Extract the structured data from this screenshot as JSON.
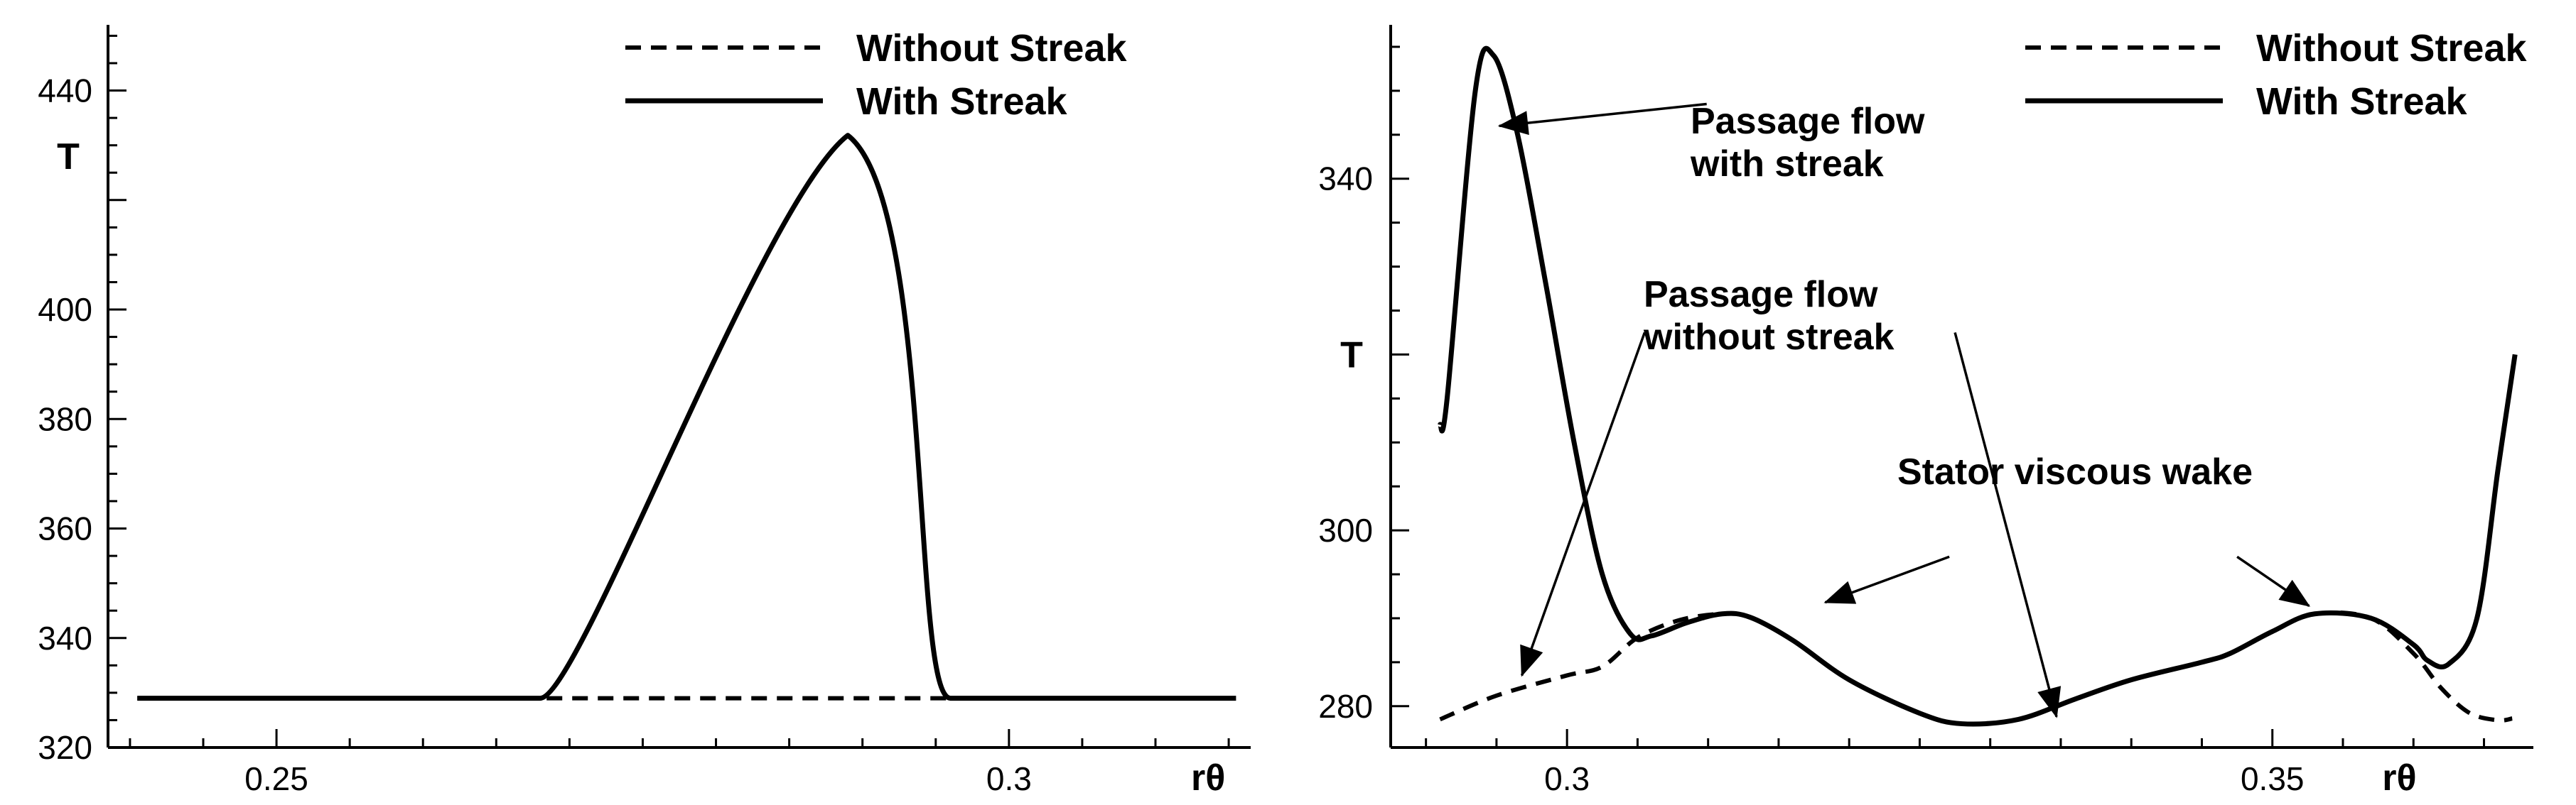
{
  "chart_data": [
    {
      "type": "line",
      "xlim": [
        0.2385,
        0.3165
      ],
      "ylim": [
        320,
        452
      ],
      "x_ticks": [
        {
          "value": 0.25,
          "label": "0.25"
        },
        {
          "value": 0.3,
          "label": "0.3"
        },
        {
          "value": 0.3136,
          "label": "rθ"
        }
      ],
      "y_ticks": [
        {
          "value": 320,
          "label": "320"
        },
        {
          "value": 340,
          "label": "340"
        },
        {
          "value": 360,
          "label": "360"
        },
        {
          "value": 380,
          "label": "380"
        },
        {
          "value": 400,
          "label": "400"
        },
        {
          "value": 440,
          "label": "440"
        }
      ],
      "ylabel": {
        "value": 428,
        "label": "T"
      },
      "grid": false,
      "legend_position": "top-right",
      "series": [
        {
          "name": "Without Streak",
          "style": "dashed",
          "x": [
            0.2405,
            0.3155
          ],
          "y": [
            329,
            329
          ]
        },
        {
          "name": "With Streak",
          "style": "solid",
          "x": [
            0.2405,
            0.268,
            0.2865,
            0.2915,
            0.296,
            0.3055,
            0.3155
          ],
          "y": [
            329,
            329,
            430,
            430,
            329,
            329,
            329
          ]
        }
      ]
    },
    {
      "type": "line",
      "xlim": [
        0.2875,
        0.3685
      ],
      "ylim": [
        275.3,
        357.5
      ],
      "x_ticks": [
        {
          "value": 0.3,
          "label": "0.3"
        },
        {
          "value": 0.35,
          "label": "0.35"
        },
        {
          "value": 0.359,
          "label": "rθ"
        }
      ],
      "y_ticks": [
        {
          "value": 280,
          "label": "280"
        },
        {
          "value": 300,
          "label": "300"
        },
        {
          "value": 340,
          "label": "340"
        }
      ],
      "ylabel": {
        "value": 320,
        "label": "T"
      },
      "grid": false,
      "legend_position": "top-right",
      "series": [
        {
          "name": "Without Streak",
          "style": "dashed",
          "x": [
            0.291,
            0.295,
            0.3,
            0.3025,
            0.305,
            0.308,
            0.311,
            0.313,
            0.316,
            0.32,
            0.325,
            0.328,
            0.332,
            0.336,
            0.34,
            0.345,
            0.347,
            0.35,
            0.353,
            0.357,
            0.36,
            0.362,
            0.364,
            0.366,
            0.367
          ],
          "y": [
            278.5,
            281.2,
            283.5,
            284.5,
            287.8,
            289.8,
            290.5,
            290.1,
            287.5,
            283.0,
            279.2,
            278.0,
            278.5,
            280.8,
            283.0,
            285.0,
            286.0,
            288.5,
            290.5,
            290.0,
            286.0,
            282.0,
            279.2,
            278.4,
            278.6
          ]
        },
        {
          "name": "With Streak",
          "style": "solid",
          "x": [
            0.291,
            0.2915,
            0.2935,
            0.2948,
            0.2965,
            0.2985,
            0.3005,
            0.3025,
            0.3045,
            0.306,
            0.3085,
            0.311,
            0.313,
            0.316,
            0.32,
            0.325,
            0.328,
            0.332,
            0.336,
            0.34,
            0.345,
            0.347,
            0.35,
            0.353,
            0.357,
            0.36,
            0.361,
            0.3625,
            0.3645,
            0.366,
            0.3672
          ],
          "y": [
            312,
            315,
            350,
            354,
            345,
            328,
            310,
            295,
            288.2,
            288.0,
            289.5,
            290.5,
            290.1,
            287.5,
            283.0,
            279.2,
            278.0,
            278.5,
            280.8,
            283.0,
            285.0,
            286.0,
            288.5,
            290.5,
            290.0,
            287.0,
            285.2,
            284.8,
            290.0,
            307.0,
            320.0
          ]
        }
      ]
    }
  ],
  "legends": [
    {
      "items": [
        {
          "label": "Without Streak",
          "style": "dashed"
        },
        {
          "label": "With Streak",
          "style": "solid"
        }
      ]
    },
    {
      "items": [
        {
          "label": "Without Streak",
          "style": "dashed"
        },
        {
          "label": "With Streak",
          "style": "solid"
        }
      ]
    }
  ],
  "annotations": [
    {
      "panel": 1,
      "lines": [
        "Passage flow",
        "with streak"
      ],
      "arrows": [
        {
          "tail": [
            0.3099,
            348.5
          ],
          "tip": [
            0.2952,
            346
          ]
        }
      ]
    },
    {
      "panel": 1,
      "lines": [
        "Passage flow",
        "without streak"
      ],
      "arrows": [
        {
          "tail": [
            0.3055,
            322.5
          ],
          "tip": [
            0.2968,
            283.5
          ]
        },
        {
          "tail": [
            0.3275,
            322.5
          ],
          "tip": [
            0.3347,
            278.8
          ]
        }
      ]
    },
    {
      "panel": 1,
      "lines": [
        "Stator viscous wake"
      ],
      "arrows": [
        {
          "tail": [
            0.3271,
            297
          ],
          "tip": [
            0.3183,
            291.8
          ]
        },
        {
          "tail": [
            0.3475,
            297
          ],
          "tip": [
            0.3526,
            291.4
          ]
        }
      ]
    }
  ]
}
